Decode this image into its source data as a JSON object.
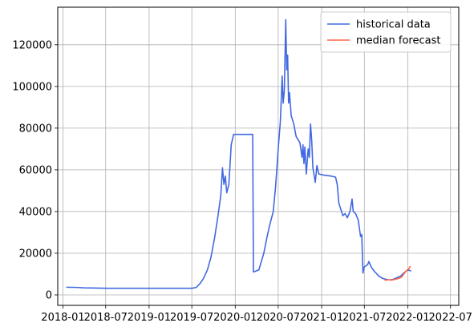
{
  "chart_data": {
    "type": "line",
    "title": "",
    "xlabel": "",
    "ylabel": "",
    "grid": true,
    "legend_placement": "top-right",
    "xlim": [
      "2017-12-10",
      "2022-08-05"
    ],
    "ylim": [
      -5000,
      138000
    ],
    "x_ticks": [
      "2018-01",
      "2018-07",
      "2019-01",
      "2019-07",
      "2020-01",
      "2020-07",
      "2021-01",
      "2021-07",
      "2022-01",
      "2022-07"
    ],
    "y_ticks": [
      0,
      20000,
      40000,
      60000,
      80000,
      100000,
      120000
    ],
    "y_tick_labels": [
      "0",
      "20000",
      "40000",
      "60000",
      "80000",
      "100000",
      "120000"
    ],
    "series": [
      {
        "name": "historical data",
        "color": "#4169e1",
        "points": [
          [
            "2018-01-15",
            3700
          ],
          [
            "2018-03-01",
            3600
          ],
          [
            "2018-04-01",
            3400
          ],
          [
            "2018-07-01",
            3200
          ],
          [
            "2019-01-01",
            3200
          ],
          [
            "2019-07-01",
            3200
          ],
          [
            "2019-07-20",
            3600
          ],
          [
            "2019-08-05",
            5500
          ],
          [
            "2019-08-20",
            8000
          ],
          [
            "2019-09-05",
            12000
          ],
          [
            "2019-09-20",
            18000
          ],
          [
            "2019-10-05",
            27000
          ],
          [
            "2019-10-20",
            38000
          ],
          [
            "2019-11-01",
            48000
          ],
          [
            "2019-11-08",
            61000
          ],
          [
            "2019-11-14",
            53000
          ],
          [
            "2019-11-20",
            57000
          ],
          [
            "2019-11-26",
            49000
          ],
          [
            "2019-12-05",
            53000
          ],
          [
            "2019-12-15",
            72000
          ],
          [
            "2019-12-25",
            77000
          ],
          [
            "2020-03-15",
            77000
          ],
          [
            "2020-03-18",
            11000
          ],
          [
            "2020-04-10",
            12000
          ],
          [
            "2020-05-01",
            20000
          ],
          [
            "2020-05-15",
            28000
          ],
          [
            "2020-05-25",
            33000
          ],
          [
            "2020-06-10",
            40000
          ],
          [
            "2020-06-20",
            52000
          ],
          [
            "2020-07-01",
            70000
          ],
          [
            "2020-07-10",
            83000
          ],
          [
            "2020-07-18",
            105000
          ],
          [
            "2020-07-22",
            92000
          ],
          [
            "2020-07-27",
            98000
          ],
          [
            "2020-08-02",
            132000
          ],
          [
            "2020-08-06",
            108000
          ],
          [
            "2020-08-10",
            115000
          ],
          [
            "2020-08-14",
            92000
          ],
          [
            "2020-08-18",
            97000
          ],
          [
            "2020-08-25",
            86000
          ],
          [
            "2020-09-05",
            82000
          ],
          [
            "2020-09-15",
            76000
          ],
          [
            "2020-10-01",
            73000
          ],
          [
            "2020-10-10",
            66000
          ],
          [
            "2020-10-14",
            72000
          ],
          [
            "2020-10-18",
            63000
          ],
          [
            "2020-10-22",
            71000
          ],
          [
            "2020-10-28",
            58000
          ],
          [
            "2020-11-05",
            70000
          ],
          [
            "2020-11-10",
            66000
          ],
          [
            "2020-11-15",
            82000
          ],
          [
            "2020-11-20",
            74000
          ],
          [
            "2020-11-25",
            61000
          ],
          [
            "2020-12-05",
            54000
          ],
          [
            "2020-12-12",
            62000
          ],
          [
            "2020-12-20",
            58000
          ],
          [
            "2021-01-10",
            57500
          ],
          [
            "2021-02-10",
            57000
          ],
          [
            "2021-03-01",
            56500
          ],
          [
            "2021-03-08",
            53000
          ],
          [
            "2021-03-15",
            44000
          ],
          [
            "2021-04-01",
            38000
          ],
          [
            "2021-04-10",
            39000
          ],
          [
            "2021-04-20",
            37000
          ],
          [
            "2021-05-01",
            40000
          ],
          [
            "2021-05-10",
            46000
          ],
          [
            "2021-05-15",
            40000
          ],
          [
            "2021-05-25",
            39000
          ],
          [
            "2021-06-05",
            36000
          ],
          [
            "2021-06-15",
            28000
          ],
          [
            "2021-06-20",
            29000
          ],
          [
            "2021-06-25",
            10500
          ],
          [
            "2021-07-01",
            13500
          ],
          [
            "2021-07-15",
            14500
          ],
          [
            "2021-07-20",
            16000
          ],
          [
            "2021-08-01",
            13000
          ],
          [
            "2021-08-15",
            11000
          ],
          [
            "2021-09-01",
            9000
          ],
          [
            "2021-09-15",
            8000
          ],
          [
            "2021-10-01",
            7500
          ],
          [
            "2021-10-15",
            7200
          ],
          [
            "2021-11-01",
            7500
          ],
          [
            "2021-11-15",
            8200
          ],
          [
            "2021-12-01",
            9000
          ],
          [
            "2021-12-15",
            10500
          ],
          [
            "2022-01-01",
            12000
          ],
          [
            "2022-01-15",
            11500
          ]
        ]
      },
      {
        "name": "median forecast",
        "color": "#ff6347",
        "points": [
          [
            "2021-09-25",
            7000
          ],
          [
            "2021-10-10",
            7300
          ],
          [
            "2021-10-25",
            7100
          ],
          [
            "2021-11-05",
            7400
          ],
          [
            "2021-11-20",
            7800
          ],
          [
            "2021-12-05",
            8500
          ],
          [
            "2021-12-15",
            10000
          ],
          [
            "2021-12-25",
            11500
          ],
          [
            "2022-01-05",
            12500
          ],
          [
            "2022-01-12",
            13800
          ]
        ]
      }
    ]
  }
}
